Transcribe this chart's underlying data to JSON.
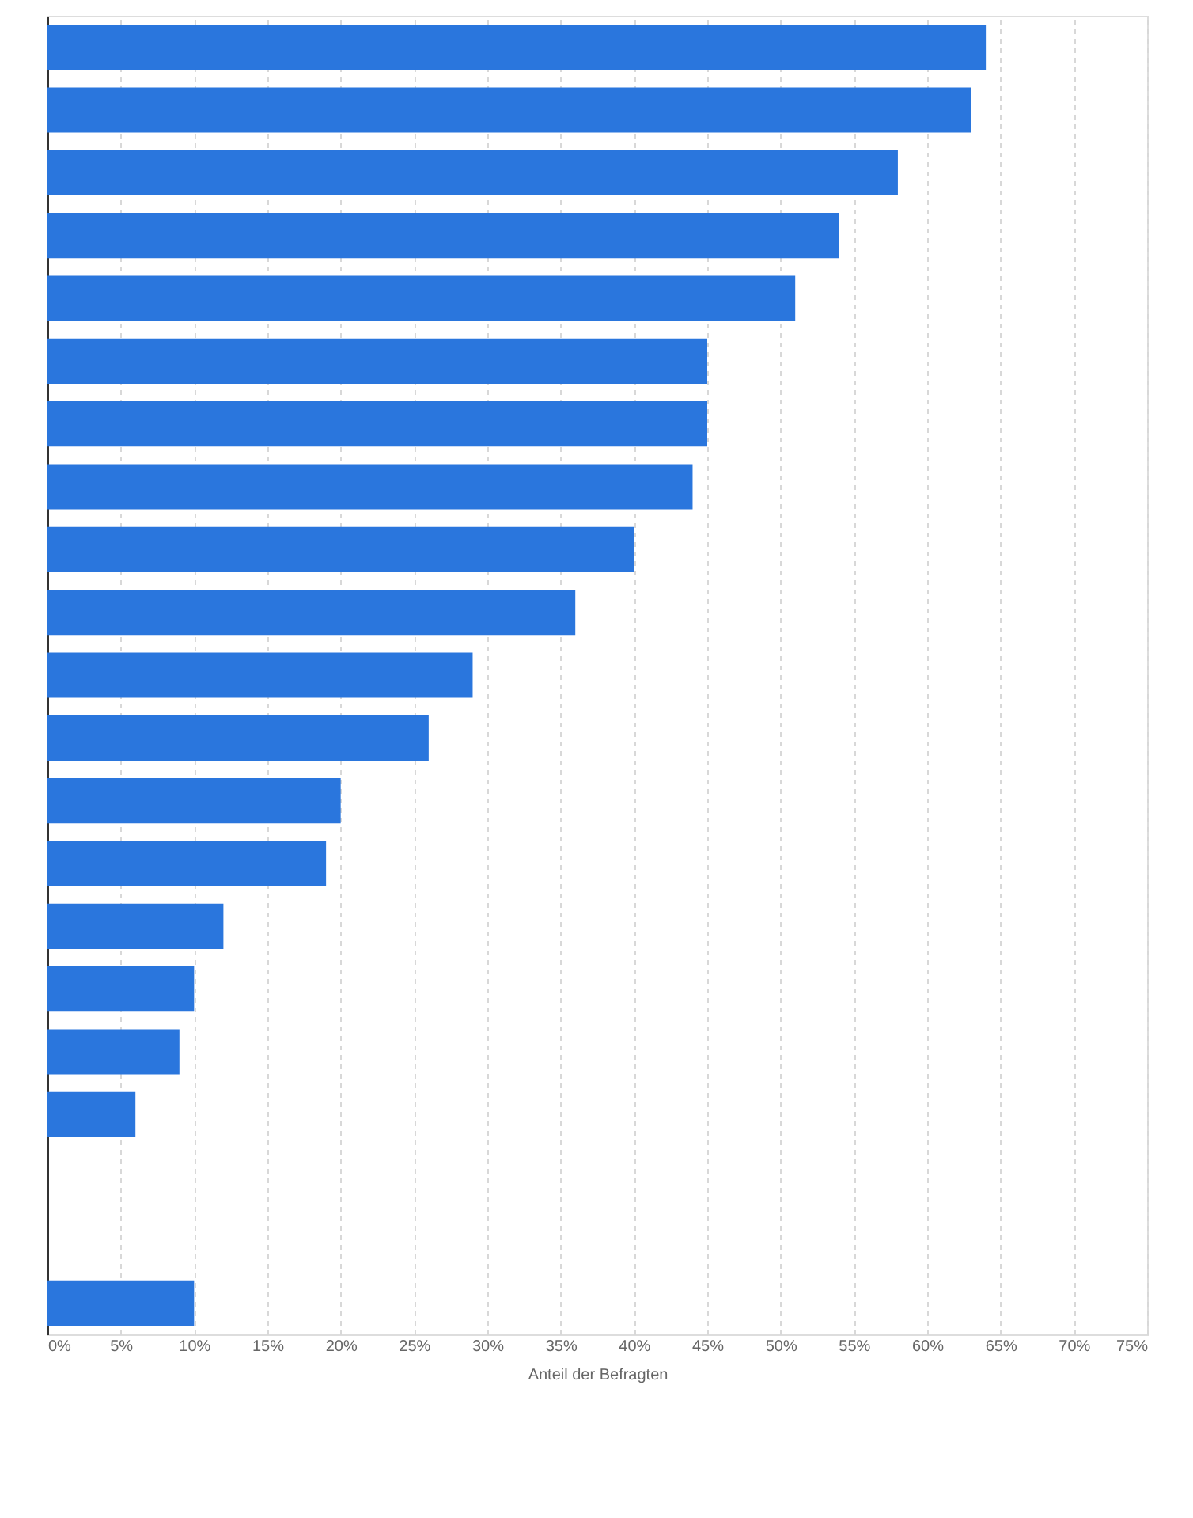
{
  "chart_data": {
    "type": "bar",
    "orientation": "horizontal",
    "xlabel": "Anteil der Befragten",
    "categories": [
      null,
      null,
      null,
      null,
      null,
      null,
      null,
      null,
      null,
      null,
      null,
      null,
      null,
      null,
      null,
      null,
      null,
      null,
      null,
      null,
      null
    ],
    "values": [
      64,
      63,
      58,
      54,
      51,
      45,
      45,
      44,
      40,
      36,
      29,
      26,
      20,
      19,
      12,
      10,
      9,
      6,
      null,
      null,
      10
    ],
    "color": "#2a76dd",
    "xlim": [
      0,
      75
    ],
    "xticks": [
      {
        "value": 0,
        "label": "0%"
      },
      {
        "value": 5,
        "label": "5%"
      },
      {
        "value": 10,
        "label": "10%"
      },
      {
        "value": 15,
        "label": "15%"
      },
      {
        "value": 20,
        "label": "20%"
      },
      {
        "value": 25,
        "label": "25%"
      },
      {
        "value": 30,
        "label": "30%"
      },
      {
        "value": 35,
        "label": "35%"
      },
      {
        "value": 40,
        "label": "40%"
      },
      {
        "value": 45,
        "label": "45%"
      },
      {
        "value": 50,
        "label": "50%"
      },
      {
        "value": 55,
        "label": "55%"
      },
      {
        "value": 60,
        "label": "60%"
      },
      {
        "value": 65,
        "label": "65%"
      },
      {
        "value": 70,
        "label": "70%"
      },
      {
        "value": 75,
        "label": "75%"
      }
    ],
    "grid": "x",
    "tick_labels": "x"
  }
}
